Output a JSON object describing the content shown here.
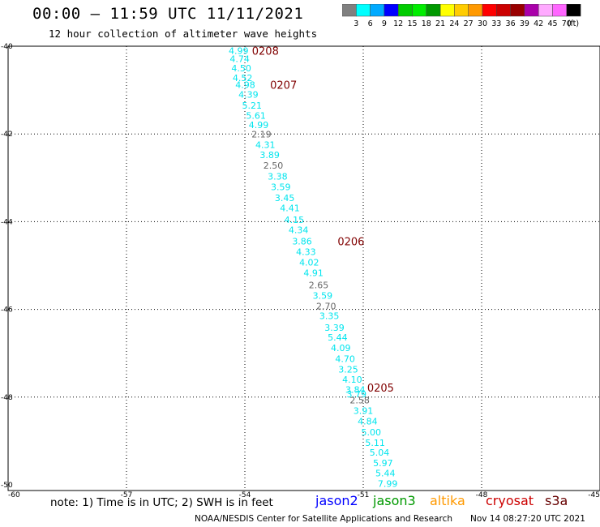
{
  "title": "00:00 – 11:59 UTC 11/11/2021",
  "subtitle": "12 hour collection of altimeter wave heights",
  "legend_scale": {
    "labels": [
      "3",
      "6",
      "9",
      "12",
      "15",
      "18",
      "21",
      "24",
      "27",
      "30",
      "33",
      "36",
      "39",
      "42",
      "45",
      "70"
    ],
    "unit": "(ft)",
    "colors": [
      "#808080",
      "#00ffff",
      "#00aaff",
      "#0000ff",
      "#00cc00",
      "#00ee00",
      "#009900",
      "#ffff00",
      "#ffcc00",
      "#ff9900",
      "#ff0000",
      "#cc0000",
      "#990000",
      "#aa00aa",
      "#ffaaff",
      "#ff66ff",
      "#000000"
    ]
  },
  "note": "note: 1) Time is in UTC; 2) SWH is in feet",
  "satellites": [
    {
      "name": "jason2",
      "color": "#0000ff"
    },
    {
      "name": "jason3",
      "color": "#009900"
    },
    {
      "name": "altika",
      "color": "#ff9900"
    },
    {
      "name": "cryosat",
      "color": "#cc0000"
    },
    {
      "name": "s3a",
      "color": "#660000"
    }
  ],
  "footer_left": "NOAA/NESDIS Center for Satellite Applications and Research",
  "footer_right": "Nov 14 08:27:20 UTC 2021",
  "chart_data": {
    "type": "scatter",
    "title": "00:00 – 11:59 UTC 11/11/2021",
    "xlim": [
      -60,
      -45
    ],
    "ylim": [
      -50,
      -40
    ],
    "x_ticks": [
      "-60",
      "-57",
      "-54",
      "-51",
      "-48",
      "-45"
    ],
    "y_ticks": [
      "-40",
      "-42",
      "-44",
      "-46",
      "-48",
      "-50"
    ],
    "grid": true,
    "colors": {
      "high": "#00e5ee",
      "low": "#666666",
      "time": "#800000"
    },
    "time_labels": [
      {
        "text": "0208",
        "lon": -53.82,
        "lat": -40.1
      },
      {
        "text": "0207",
        "lon": -53.36,
        "lat": -40.88
      },
      {
        "text": "0206",
        "lon": -51.65,
        "lat": -44.45
      },
      {
        "text": "0205",
        "lon": -50.9,
        "lat": -47.78
      }
    ],
    "points": [
      {
        "lon": -54.16,
        "lat": -40.1,
        "swh": "4.99"
      },
      {
        "lon": -54.13,
        "lat": -40.29,
        "swh": "4.74"
      },
      {
        "lon": -54.09,
        "lat": -40.5,
        "swh": "4.50"
      },
      {
        "lon": -54.06,
        "lat": -40.72,
        "swh": "4.52"
      },
      {
        "lon": -53.99,
        "lat": -40.88,
        "swh": "4.98"
      },
      {
        "lon": -53.91,
        "lat": -41.1,
        "swh": "4.39"
      },
      {
        "lon": -53.82,
        "lat": -41.35,
        "swh": "5.21"
      },
      {
        "lon": -53.72,
        "lat": -41.58,
        "swh": "5.61"
      },
      {
        "lon": -53.65,
        "lat": -41.79,
        "swh": "4.99"
      },
      {
        "lon": -53.58,
        "lat": -42.01,
        "swh": "2.19"
      },
      {
        "lon": -53.48,
        "lat": -42.25,
        "swh": "4.31"
      },
      {
        "lon": -53.37,
        "lat": -42.48,
        "swh": "3.89"
      },
      {
        "lon": -53.28,
        "lat": -42.72,
        "swh": "2.50"
      },
      {
        "lon": -53.17,
        "lat": -42.97,
        "swh": "3.38"
      },
      {
        "lon": -53.09,
        "lat": -43.21,
        "swh": "3.59"
      },
      {
        "lon": -52.99,
        "lat": -43.46,
        "swh": "3.45"
      },
      {
        "lon": -52.86,
        "lat": -43.69,
        "swh": "4.41"
      },
      {
        "lon": -52.75,
        "lat": -43.96,
        "swh": "4.15"
      },
      {
        "lon": -52.64,
        "lat": -44.19,
        "swh": "4.34"
      },
      {
        "lon": -52.55,
        "lat": -44.45,
        "swh": "3.86"
      },
      {
        "lon": -52.45,
        "lat": -44.69,
        "swh": "4.33"
      },
      {
        "lon": -52.37,
        "lat": -44.93,
        "swh": "4.02"
      },
      {
        "lon": -52.26,
        "lat": -45.17,
        "swh": "4.91"
      },
      {
        "lon": -52.13,
        "lat": -45.44,
        "swh": "2.65"
      },
      {
        "lon": -52.03,
        "lat": -45.68,
        "swh": "3.59"
      },
      {
        "lon": -51.94,
        "lat": -45.92,
        "swh": "2.70"
      },
      {
        "lon": -51.86,
        "lat": -46.15,
        "swh": "3.35"
      },
      {
        "lon": -51.73,
        "lat": -46.41,
        "swh": "3.39"
      },
      {
        "lon": -51.65,
        "lat": -46.64,
        "swh": "5.44"
      },
      {
        "lon": -51.57,
        "lat": -46.88,
        "swh": "4.09"
      },
      {
        "lon": -51.46,
        "lat": -47.13,
        "swh": "4.70"
      },
      {
        "lon": -51.38,
        "lat": -47.37,
        "swh": "3.25"
      },
      {
        "lon": -51.28,
        "lat": -47.6,
        "swh": "4.10"
      },
      {
        "lon": -51.2,
        "lat": -47.83,
        "swh": "3.84"
      },
      {
        "lon": -51.17,
        "lat": -47.93,
        "swh": "3.79"
      },
      {
        "lon": -51.09,
        "lat": -48.07,
        "swh": "2.58"
      },
      {
        "lon": -51.0,
        "lat": -48.31,
        "swh": "3.91"
      },
      {
        "lon": -50.89,
        "lat": -48.55,
        "swh": "4.84"
      },
      {
        "lon": -50.8,
        "lat": -48.8,
        "swh": "5.00"
      },
      {
        "lon": -50.7,
        "lat": -49.04,
        "swh": "5.11"
      },
      {
        "lon": -50.59,
        "lat": -49.26,
        "swh": "5.04"
      },
      {
        "lon": -50.5,
        "lat": -49.5,
        "swh": "5.97"
      },
      {
        "lon": -50.44,
        "lat": -49.73,
        "swh": "5.44"
      },
      {
        "lon": -50.38,
        "lat": -49.97,
        "swh": "7.99"
      }
    ]
  }
}
